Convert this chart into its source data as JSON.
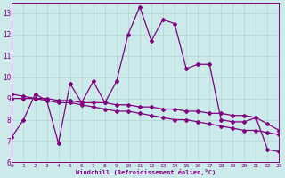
{
  "xlabel": "Windchill (Refroidissement éolien,°C)",
  "background_color": "#cceaea",
  "line_color": "#800080",
  "x_values": [
    0,
    1,
    2,
    3,
    4,
    5,
    6,
    7,
    8,
    9,
    10,
    11,
    12,
    13,
    14,
    15,
    16,
    17,
    18,
    19,
    20,
    21,
    22,
    23
  ],
  "y_series1": [
    7.2,
    8.0,
    9.2,
    8.9,
    6.9,
    9.7,
    8.8,
    9.8,
    8.8,
    9.8,
    12.0,
    13.3,
    11.7,
    12.7,
    12.5,
    10.4,
    10.6,
    10.6,
    8.0,
    7.9,
    7.9,
    8.1,
    6.6,
    6.5
  ],
  "y_series2": [
    9.2,
    9.1,
    9.0,
    8.9,
    8.8,
    8.8,
    8.7,
    8.6,
    8.5,
    8.4,
    8.4,
    8.3,
    8.2,
    8.1,
    8.0,
    8.0,
    7.9,
    7.8,
    7.7,
    7.6,
    7.5,
    7.5,
    7.4,
    7.3
  ],
  "y_series3": [
    9.0,
    9.0,
    9.0,
    9.0,
    8.9,
    8.9,
    8.8,
    8.8,
    8.8,
    8.7,
    8.7,
    8.6,
    8.6,
    8.5,
    8.5,
    8.4,
    8.4,
    8.3,
    8.3,
    8.2,
    8.2,
    8.1,
    7.8,
    7.5
  ],
  "xlim": [
    0,
    23
  ],
  "ylim": [
    6,
    13.5
  ],
  "yticks": [
    6,
    7,
    8,
    9,
    10,
    11,
    12,
    13
  ],
  "xticks": [
    0,
    1,
    2,
    3,
    4,
    5,
    6,
    7,
    8,
    9,
    10,
    11,
    12,
    13,
    14,
    15,
    16,
    17,
    18,
    19,
    20,
    21,
    22,
    23
  ],
  "grid_color": "#b0d4d4",
  "marker": "D",
  "marker_size": 2.0,
  "line_width": 0.9
}
